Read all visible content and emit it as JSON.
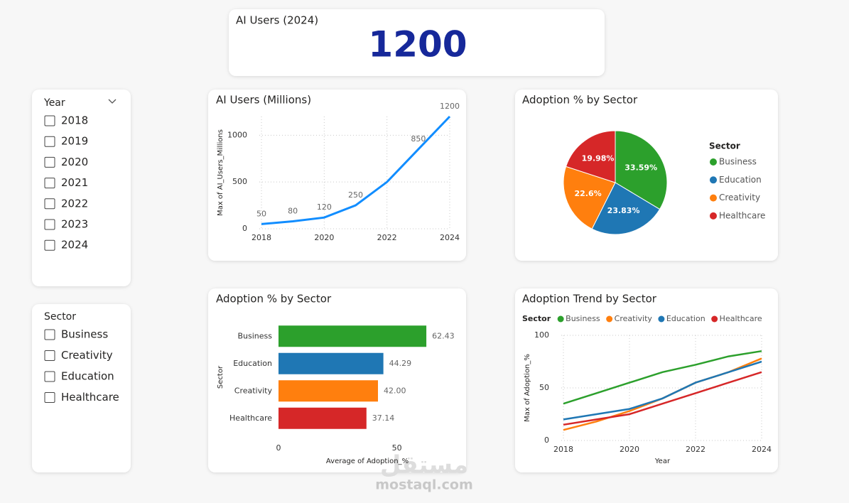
{
  "card": {
    "title": "AI Users (2024)",
    "value": 1200
  },
  "slicers": [
    {
      "title": "Year",
      "items": [
        "2018",
        "2019",
        "2020",
        "2021",
        "2022",
        "2023",
        "2024"
      ]
    },
    {
      "title": "Sector",
      "items": [
        "Business",
        "Creativity",
        "Education",
        "Healthcare"
      ]
    }
  ],
  "chart_data": [
    {
      "type": "line",
      "title": "AI Users (Millions)",
      "y_label": "Max of AI_Users_Millions",
      "x": [
        2018,
        2019,
        2020,
        2021,
        2022,
        2023,
        2024
      ],
      "values": [
        50,
        80,
        120,
        250,
        500,
        850,
        1200
      ],
      "value_labels": [
        "50",
        "80",
        "120",
        "250",
        null,
        "850",
        "1200"
      ],
      "color": "#118dff",
      "xlim": [
        2018,
        2024
      ],
      "xticks": [
        2018,
        2020,
        2022,
        2024
      ],
      "ylim": [
        0,
        1200
      ],
      "yticks": [
        0,
        500,
        1000
      ],
      "grid": true
    },
    {
      "type": "pie",
      "title": "Adoption % by Sector",
      "legend_title": "Sector",
      "categories": [
        "Business",
        "Education",
        "Creativity",
        "Healthcare"
      ],
      "values": [
        33.59,
        23.83,
        22.6,
        19.98
      ],
      "value_labels": [
        "33.59%",
        "23.83%",
        "22.6%",
        "19.98%"
      ],
      "colors": [
        "#2ca02c",
        "#1f77b4",
        "#ff7f0e",
        "#d62728"
      ],
      "legend": "right"
    },
    {
      "type": "bar",
      "title": "Adoption % by Sector",
      "x_label": "Average of Adoption_%",
      "y_label": "Sector",
      "categories": [
        "Business",
        "Education",
        "Creativity",
        "Healthcare"
      ],
      "values": [
        62.43,
        44.29,
        42.0,
        37.14
      ],
      "value_labels": [
        "62.43",
        "44.29",
        "42.00",
        "37.14"
      ],
      "colors": [
        "#2ca02c",
        "#1f77b4",
        "#ff7f0e",
        "#d62728"
      ],
      "xlim": [
        0,
        75
      ],
      "xticks": [
        0,
        50
      ]
    },
    {
      "type": "line",
      "title": "Adoption Trend by Sector",
      "legend_title": "Sector",
      "x_label": "Year",
      "y_label": "Max of Adoption_%",
      "x": [
        2018,
        2019,
        2020,
        2021,
        2022,
        2023,
        2024
      ],
      "series": [
        {
          "name": "Business",
          "color": "#2ca02c",
          "values": [
            35,
            45,
            55,
            65,
            72,
            80,
            85
          ]
        },
        {
          "name": "Creativity",
          "color": "#ff7f0e",
          "values": [
            10,
            18,
            28,
            40,
            55,
            65,
            78
          ]
        },
        {
          "name": "Education",
          "color": "#1f77b4",
          "values": [
            20,
            25,
            30,
            40,
            55,
            65,
            75
          ]
        },
        {
          "name": "Healthcare",
          "color": "#d62728",
          "values": [
            15,
            20,
            25,
            35,
            45,
            55,
            65
          ]
        }
      ],
      "xlim": [
        2018,
        2024
      ],
      "xticks": [
        2018,
        2020,
        2022,
        2024
      ],
      "ylim": [
        0,
        100
      ],
      "yticks": [
        0,
        50,
        100
      ],
      "grid": true,
      "legend": "top"
    }
  ],
  "watermark": {
    "logo": "مستقل",
    "site": "mostaql.com"
  }
}
